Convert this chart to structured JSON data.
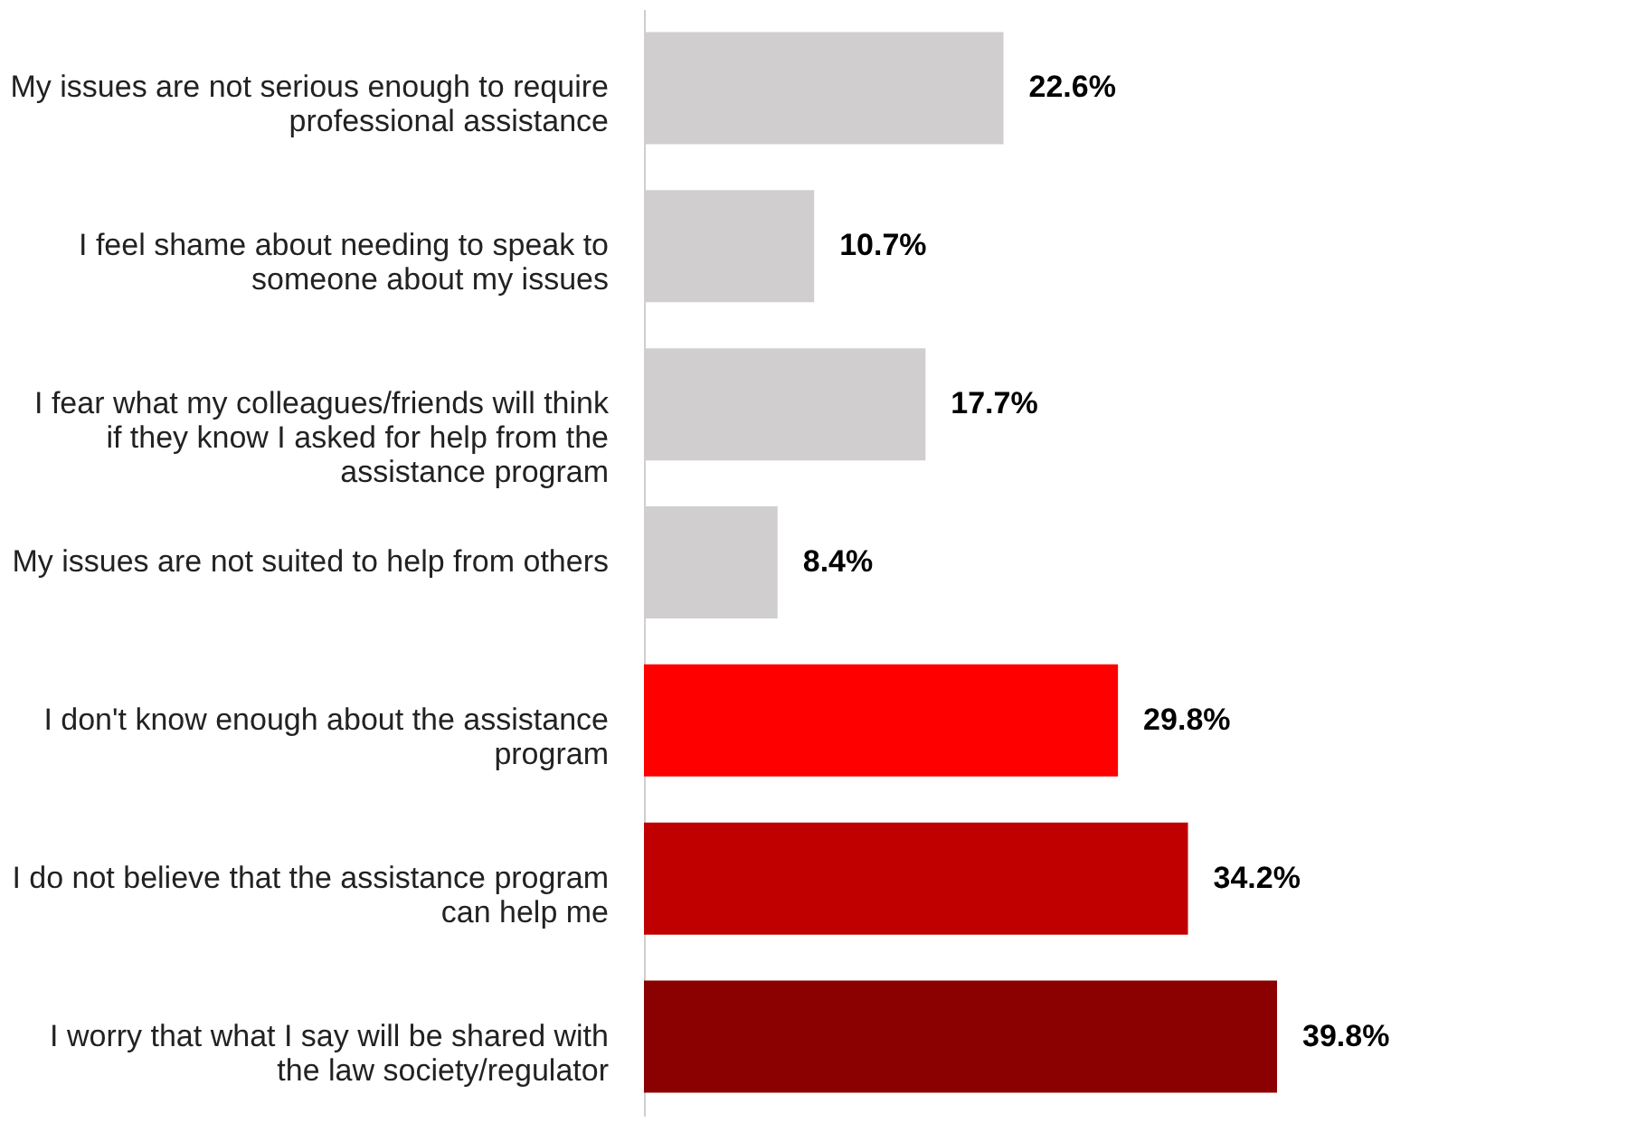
{
  "chart_data": {
    "type": "bar",
    "orientation": "horizontal",
    "categories": [
      "My issues are not serious enough to require professional assistance",
      "I feel shame about needing to speak to someone about my issues",
      "I fear what my colleagues/friends will think if they know I asked for help from the assistance program",
      "My issues are not suited to help from others",
      "I don't know enough about the assistance program",
      "I do not believe that the assistance program can help me",
      "I worry that what I say will be shared with the law society/regulator"
    ],
    "values": [
      22.6,
      10.7,
      17.7,
      8.4,
      29.8,
      34.2,
      39.8
    ],
    "colors": [
      "#d0cece",
      "#d0cece",
      "#d0cece",
      "#d0cece",
      "#ff0000",
      "#c00000",
      "#8b0000"
    ],
    "value_labels": [
      "22.6%",
      "10.7%",
      "17.7%",
      "8.4%",
      "29.8%",
      "34.2%",
      "39.8%"
    ]
  }
}
